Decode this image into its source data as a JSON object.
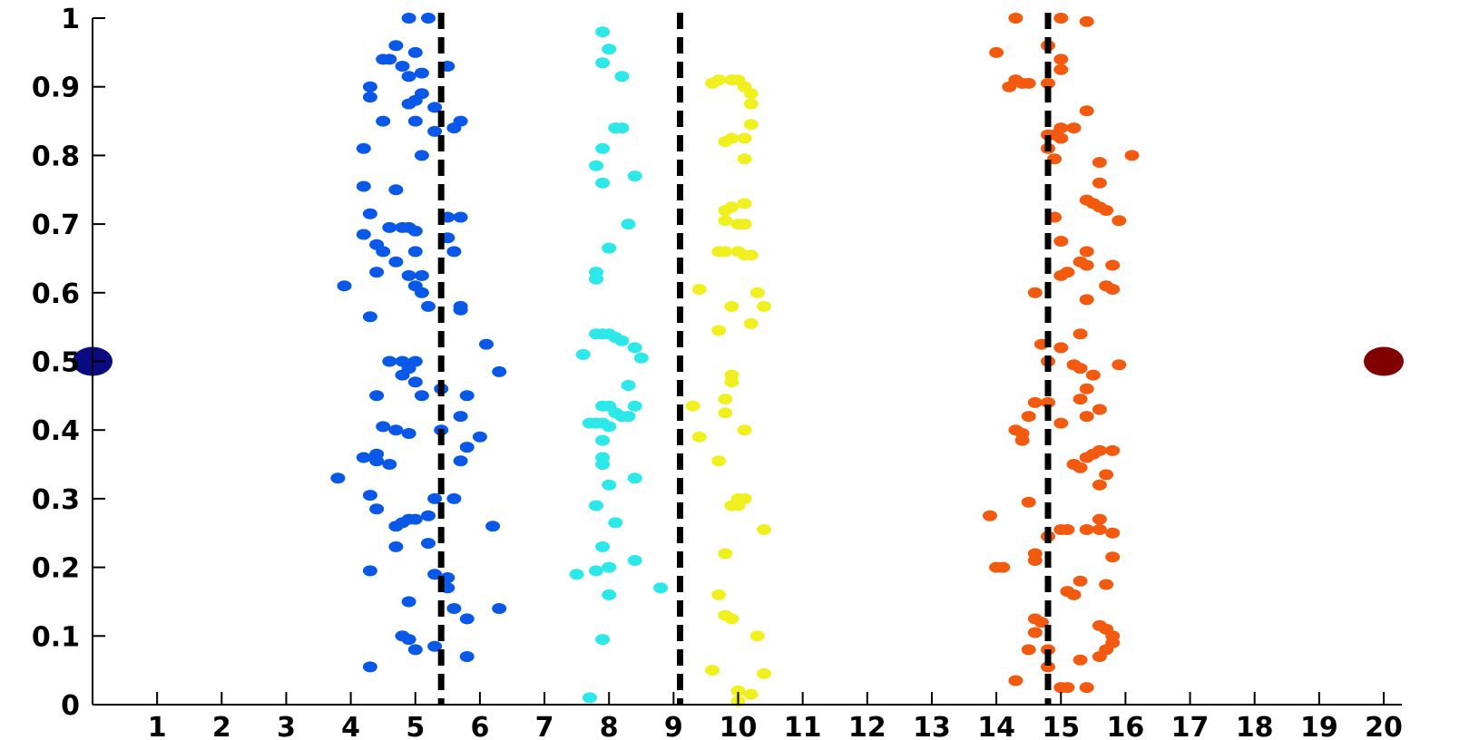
{
  "chart_data": {
    "type": "scatter",
    "title": "",
    "xlabel": "",
    "ylabel": "",
    "xlim": [
      0,
      20
    ],
    "ylim": [
      0,
      1
    ],
    "grid": false,
    "x_ticks": [
      1,
      2,
      3,
      4,
      5,
      6,
      7,
      8,
      9,
      10,
      11,
      12,
      13,
      14,
      15,
      16,
      17,
      18,
      19,
      20
    ],
    "y_ticks": [
      0,
      0.1,
      0.2,
      0.3,
      0.4,
      0.5,
      0.6,
      0.7,
      0.8,
      0.9,
      1
    ],
    "y_tick_labels": [
      "0",
      "0.1",
      "0.2",
      "0.3",
      "0.4",
      "0.5",
      "0.6",
      "0.7",
      "0.8",
      "0.9",
      "1"
    ],
    "vertical_lines": [
      5.4,
      9.1,
      14.8
    ],
    "series": [
      {
        "color": "#0a58e8",
        "points": [
          [
            4.9,
            1.0
          ],
          [
            5.2,
            1.0
          ],
          [
            4.7,
            0.96
          ],
          [
            5.0,
            0.95
          ],
          [
            4.5,
            0.94
          ],
          [
            4.6,
            0.94
          ],
          [
            4.8,
            0.93
          ],
          [
            5.5,
            0.93
          ],
          [
            5.1,
            0.92
          ],
          [
            4.9,
            0.915
          ],
          [
            4.3,
            0.9
          ],
          [
            5.1,
            0.89
          ],
          [
            4.3,
            0.885
          ],
          [
            5.0,
            0.88
          ],
          [
            4.9,
            0.875
          ],
          [
            5.3,
            0.87
          ],
          [
            4.5,
            0.85
          ],
          [
            5.0,
            0.85
          ],
          [
            5.7,
            0.85
          ],
          [
            5.6,
            0.84
          ],
          [
            5.3,
            0.835
          ],
          [
            4.2,
            0.81
          ],
          [
            5.1,
            0.8
          ],
          [
            4.2,
            0.755
          ],
          [
            4.7,
            0.75
          ],
          [
            4.3,
            0.715
          ],
          [
            5.5,
            0.71
          ],
          [
            5.7,
            0.71
          ],
          [
            4.6,
            0.695
          ],
          [
            4.8,
            0.695
          ],
          [
            4.9,
            0.695
          ],
          [
            5.0,
            0.69
          ],
          [
            4.2,
            0.685
          ],
          [
            5.5,
            0.68
          ],
          [
            4.4,
            0.67
          ],
          [
            4.5,
            0.66
          ],
          [
            5.0,
            0.66
          ],
          [
            5.6,
            0.66
          ],
          [
            4.7,
            0.645
          ],
          [
            4.4,
            0.63
          ],
          [
            4.9,
            0.625
          ],
          [
            5.1,
            0.625
          ],
          [
            5.0,
            0.61
          ],
          [
            3.9,
            0.61
          ],
          [
            5.1,
            0.6
          ],
          [
            5.2,
            0.58
          ],
          [
            5.7,
            0.58
          ],
          [
            5.7,
            0.575
          ],
          [
            4.3,
            0.565
          ],
          [
            6.1,
            0.525
          ],
          [
            4.8,
            0.5
          ],
          [
            4.6,
            0.5
          ],
          [
            5.0,
            0.5
          ],
          [
            4.9,
            0.49
          ],
          [
            6.3,
            0.485
          ],
          [
            4.8,
            0.48
          ],
          [
            5.0,
            0.47
          ],
          [
            5.4,
            0.46
          ],
          [
            4.4,
            0.45
          ],
          [
            5.1,
            0.45
          ],
          [
            5.8,
            0.45
          ],
          [
            5.7,
            0.42
          ],
          [
            4.5,
            0.405
          ],
          [
            4.7,
            0.4
          ],
          [
            5.4,
            0.4
          ],
          [
            4.9,
            0.395
          ],
          [
            6.0,
            0.39
          ],
          [
            5.8,
            0.375
          ],
          [
            4.2,
            0.36
          ],
          [
            4.4,
            0.365
          ],
          [
            4.4,
            0.355
          ],
          [
            4.6,
            0.35
          ],
          [
            5.7,
            0.355
          ],
          [
            3.8,
            0.33
          ],
          [
            4.3,
            0.305
          ],
          [
            5.3,
            0.3
          ],
          [
            5.6,
            0.3
          ],
          [
            4.4,
            0.285
          ],
          [
            5.2,
            0.275
          ],
          [
            4.9,
            0.27
          ],
          [
            5.0,
            0.27
          ],
          [
            4.8,
            0.265
          ],
          [
            4.7,
            0.26
          ],
          [
            6.2,
            0.26
          ],
          [
            5.2,
            0.235
          ],
          [
            4.7,
            0.23
          ],
          [
            4.3,
            0.195
          ],
          [
            5.3,
            0.19
          ],
          [
            5.5,
            0.185
          ],
          [
            5.5,
            0.17
          ],
          [
            4.9,
            0.15
          ],
          [
            6.3,
            0.14
          ],
          [
            5.6,
            0.14
          ],
          [
            5.8,
            0.125
          ],
          [
            4.8,
            0.1
          ],
          [
            4.9,
            0.095
          ],
          [
            5.0,
            0.08
          ],
          [
            5.3,
            0.085
          ],
          [
            5.8,
            0.07
          ],
          [
            4.3,
            0.055
          ]
        ]
      },
      {
        "color": "#2de8e8",
        "points": [
          [
            7.9,
            0.98
          ],
          [
            8.0,
            0.955
          ],
          [
            7.9,
            0.935
          ],
          [
            8.2,
            0.915
          ],
          [
            8.1,
            0.84
          ],
          [
            8.2,
            0.84
          ],
          [
            7.9,
            0.81
          ],
          [
            7.8,
            0.785
          ],
          [
            8.4,
            0.77
          ],
          [
            7.9,
            0.76
          ],
          [
            8.3,
            0.7
          ],
          [
            8.0,
            0.665
          ],
          [
            7.8,
            0.63
          ],
          [
            7.8,
            0.62
          ],
          [
            7.8,
            0.54
          ],
          [
            7.9,
            0.54
          ],
          [
            8.0,
            0.54
          ],
          [
            8.1,
            0.535
          ],
          [
            8.2,
            0.53
          ],
          [
            8.4,
            0.52
          ],
          [
            8.5,
            0.505
          ],
          [
            7.6,
            0.51
          ],
          [
            8.3,
            0.465
          ],
          [
            7.9,
            0.435
          ],
          [
            8.0,
            0.435
          ],
          [
            8.1,
            0.425
          ],
          [
            8.4,
            0.435
          ],
          [
            8.3,
            0.42
          ],
          [
            8.2,
            0.42
          ],
          [
            7.7,
            0.41
          ],
          [
            7.8,
            0.41
          ],
          [
            7.9,
            0.41
          ],
          [
            8.0,
            0.405
          ],
          [
            7.9,
            0.385
          ],
          [
            7.9,
            0.36
          ],
          [
            7.9,
            0.35
          ],
          [
            8.4,
            0.33
          ],
          [
            8.0,
            0.32
          ],
          [
            7.8,
            0.29
          ],
          [
            8.1,
            0.265
          ],
          [
            7.9,
            0.23
          ],
          [
            8.4,
            0.21
          ],
          [
            8.0,
            0.2
          ],
          [
            7.8,
            0.195
          ],
          [
            7.5,
            0.19
          ],
          [
            8.0,
            0.16
          ],
          [
            8.8,
            0.17
          ],
          [
            7.9,
            0.095
          ],
          [
            7.7,
            0.01
          ]
        ]
      },
      {
        "color": "#f0f020",
        "points": [
          [
            9.6,
            0.905
          ],
          [
            9.7,
            0.91
          ],
          [
            9.9,
            0.91
          ],
          [
            10.0,
            0.91
          ],
          [
            10.1,
            0.9
          ],
          [
            10.2,
            0.89
          ],
          [
            10.2,
            0.875
          ],
          [
            10.2,
            0.845
          ],
          [
            9.8,
            0.82
          ],
          [
            9.9,
            0.825
          ],
          [
            10.1,
            0.825
          ],
          [
            10.1,
            0.795
          ],
          [
            10.1,
            0.73
          ],
          [
            9.9,
            0.725
          ],
          [
            9.8,
            0.72
          ],
          [
            9.8,
            0.705
          ],
          [
            10.0,
            0.7
          ],
          [
            10.1,
            0.7
          ],
          [
            9.7,
            0.66
          ],
          [
            9.8,
            0.66
          ],
          [
            10.0,
            0.66
          ],
          [
            10.1,
            0.655
          ],
          [
            10.2,
            0.655
          ],
          [
            9.4,
            0.605
          ],
          [
            10.3,
            0.6
          ],
          [
            9.9,
            0.58
          ],
          [
            10.4,
            0.58
          ],
          [
            10.2,
            0.555
          ],
          [
            9.7,
            0.545
          ],
          [
            9.9,
            0.48
          ],
          [
            9.9,
            0.47
          ],
          [
            9.3,
            0.435
          ],
          [
            9.8,
            0.445
          ],
          [
            9.8,
            0.425
          ],
          [
            9.4,
            0.39
          ],
          [
            10.1,
            0.4
          ],
          [
            9.7,
            0.355
          ],
          [
            10.0,
            0.3
          ],
          [
            10.1,
            0.3
          ],
          [
            9.9,
            0.29
          ],
          [
            10.0,
            0.29
          ],
          [
            10.4,
            0.255
          ],
          [
            9.8,
            0.22
          ],
          [
            9.7,
            0.16
          ],
          [
            9.8,
            0.13
          ],
          [
            9.9,
            0.125
          ],
          [
            10.3,
            0.1
          ],
          [
            9.6,
            0.05
          ],
          [
            10.4,
            0.045
          ],
          [
            10.0,
            0.02
          ],
          [
            10.2,
            0.015
          ],
          [
            10.0,
            0.005
          ]
        ]
      },
      {
        "color": "#f25a10",
        "points": [
          [
            14.3,
            1.0
          ],
          [
            15.0,
            1.0
          ],
          [
            15.4,
            0.995
          ],
          [
            14.8,
            0.96
          ],
          [
            14.0,
            0.95
          ],
          [
            15.0,
            0.94
          ],
          [
            15.0,
            0.925
          ],
          [
            14.3,
            0.91
          ],
          [
            14.4,
            0.905
          ],
          [
            14.5,
            0.905
          ],
          [
            14.2,
            0.9
          ],
          [
            14.8,
            0.905
          ],
          [
            15.4,
            0.865
          ],
          [
            15.2,
            0.84
          ],
          [
            15.0,
            0.84
          ],
          [
            14.8,
            0.83
          ],
          [
            14.9,
            0.83
          ],
          [
            15.0,
            0.825
          ],
          [
            14.8,
            0.81
          ],
          [
            14.9,
            0.795
          ],
          [
            16.1,
            0.8
          ],
          [
            15.6,
            0.79
          ],
          [
            15.6,
            0.76
          ],
          [
            15.4,
            0.735
          ],
          [
            15.5,
            0.73
          ],
          [
            15.6,
            0.725
          ],
          [
            15.7,
            0.72
          ],
          [
            14.9,
            0.71
          ],
          [
            15.9,
            0.705
          ],
          [
            15.0,
            0.675
          ],
          [
            15.4,
            0.66
          ],
          [
            15.3,
            0.645
          ],
          [
            15.4,
            0.64
          ],
          [
            15.8,
            0.64
          ],
          [
            15.1,
            0.63
          ],
          [
            15.0,
            0.625
          ],
          [
            15.7,
            0.61
          ],
          [
            15.8,
            0.605
          ],
          [
            14.6,
            0.6
          ],
          [
            15.4,
            0.59
          ],
          [
            15.3,
            0.54
          ],
          [
            14.7,
            0.525
          ],
          [
            15.0,
            0.52
          ],
          [
            14.8,
            0.5
          ],
          [
            15.2,
            0.495
          ],
          [
            15.3,
            0.49
          ],
          [
            15.9,
            0.495
          ],
          [
            15.5,
            0.48
          ],
          [
            15.4,
            0.46
          ],
          [
            14.8,
            0.44
          ],
          [
            15.3,
            0.445
          ],
          [
            14.6,
            0.44
          ],
          [
            14.5,
            0.42
          ],
          [
            15.6,
            0.43
          ],
          [
            15.4,
            0.42
          ],
          [
            15.0,
            0.41
          ],
          [
            14.3,
            0.4
          ],
          [
            14.4,
            0.395
          ],
          [
            14.4,
            0.385
          ],
          [
            15.6,
            0.37
          ],
          [
            15.8,
            0.37
          ],
          [
            15.5,
            0.365
          ],
          [
            15.4,
            0.36
          ],
          [
            15.2,
            0.35
          ],
          [
            15.3,
            0.345
          ],
          [
            15.7,
            0.335
          ],
          [
            15.6,
            0.32
          ],
          [
            14.5,
            0.295
          ],
          [
            13.9,
            0.275
          ],
          [
            15.6,
            0.27
          ],
          [
            15.0,
            0.255
          ],
          [
            15.1,
            0.255
          ],
          [
            15.4,
            0.255
          ],
          [
            15.6,
            0.255
          ],
          [
            15.8,
            0.25
          ],
          [
            14.8,
            0.245
          ],
          [
            14.6,
            0.22
          ],
          [
            14.6,
            0.21
          ],
          [
            15.8,
            0.215
          ],
          [
            14.0,
            0.2
          ],
          [
            14.1,
            0.2
          ],
          [
            15.3,
            0.18
          ],
          [
            15.7,
            0.175
          ],
          [
            15.1,
            0.165
          ],
          [
            15.2,
            0.16
          ],
          [
            14.6,
            0.125
          ],
          [
            14.7,
            0.12
          ],
          [
            14.6,
            0.105
          ],
          [
            15.6,
            0.115
          ],
          [
            15.7,
            0.11
          ],
          [
            15.8,
            0.1
          ],
          [
            15.8,
            0.09
          ],
          [
            15.7,
            0.08
          ],
          [
            15.6,
            0.07
          ],
          [
            14.5,
            0.08
          ],
          [
            14.8,
            0.08
          ],
          [
            15.3,
            0.065
          ],
          [
            14.8,
            0.055
          ],
          [
            14.3,
            0.035
          ],
          [
            15.0,
            0.025
          ],
          [
            15.1,
            0.025
          ],
          [
            15.4,
            0.025
          ]
        ]
      }
    ],
    "endpoints": [
      {
        "x": 0,
        "y": 0.5,
        "color": "#0a0a82"
      },
      {
        "x": 20,
        "y": 0.5,
        "color": "#800000"
      }
    ]
  }
}
